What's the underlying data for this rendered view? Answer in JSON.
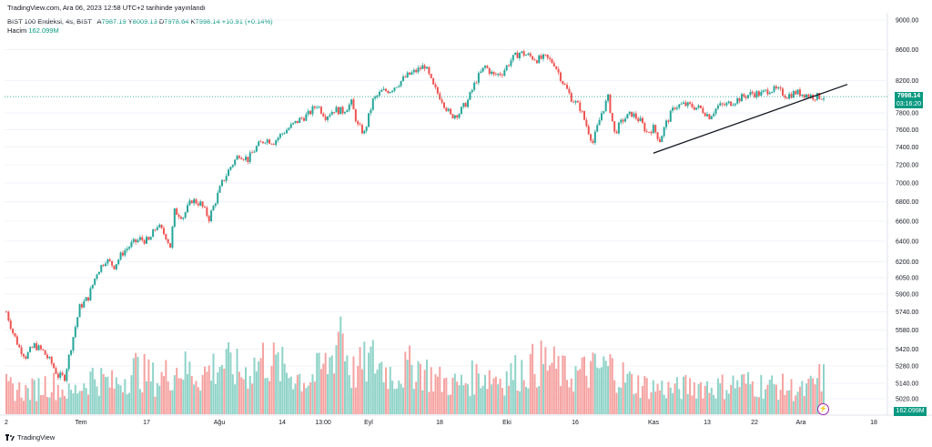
{
  "header": {
    "source_line": "TradingView.com, Ara 06, 2023 12:58 UTC+2 tarihinde yayınlandı"
  },
  "symbol": {
    "name": "BIST 100 Endeksi, 4s, BIST",
    "open_label": "A",
    "open": "7987.19",
    "high_label": "Y",
    "high": "8009.13",
    "low_label": "D",
    "low": "7978.64",
    "close_label": "K",
    "close": "7998.14",
    "change": "+10.91 (+0.14%)"
  },
  "volume": {
    "label": "Hacim",
    "value": "162.099M"
  },
  "price_tags": {
    "current": "7998.14",
    "countdown": "03:16:20",
    "volume": "162.099M"
  },
  "footer": {
    "brand": "TradingView"
  },
  "colors": {
    "up": "#26a69a",
    "down": "#ef5350",
    "up_vol": "#8fd3c8",
    "down_vol": "#f5a3a1",
    "tag": "#089981",
    "trendline": "#131722"
  },
  "chart_data": {
    "type": "candlestick",
    "title": "BIST 100 Endeksi, 4s, BIST",
    "y_axis_ticks": [
      "9000.00",
      "8600.00",
      "8200.00",
      "7800.00",
      "7600.00",
      "7400.00",
      "7200.00",
      "7000.00",
      "6800.00",
      "6600.00",
      "6400.00",
      "6200.00",
      "6050.00",
      "5900.00",
      "5740.00",
      "5580.00",
      "5420.00",
      "5280.00",
      "5140.00",
      "5020.00"
    ],
    "x_axis_ticks": [
      "2",
      "Tem",
      "17",
      "Ağu",
      "14",
      "13:00",
      "Eyl",
      "18",
      "Eki",
      "16",
      "Kas",
      "13",
      "22",
      "Ara",
      "18"
    ],
    "y_scale": "log",
    "y_range": [
      4970,
      9000
    ],
    "last_close": 7998.14,
    "price_path": [
      [
        0,
        5740
      ],
      [
        3,
        5560
      ],
      [
        6,
        5430
      ],
      [
        9,
        5360
      ],
      [
        13,
        5450
      ],
      [
        17,
        5400
      ],
      [
        21,
        5300
      ],
      [
        24,
        5200
      ],
      [
        27,
        5190
      ],
      [
        30,
        5440
      ],
      [
        34,
        5780
      ],
      [
        38,
        5870
      ],
      [
        42,
        6100
      ],
      [
        46,
        6220
      ],
      [
        50,
        6160
      ],
      [
        54,
        6290
      ],
      [
        58,
        6370
      ],
      [
        62,
        6420
      ],
      [
        66,
        6400
      ],
      [
        70,
        6560
      ],
      [
        74,
        6450
      ],
      [
        76,
        6350
      ],
      [
        78,
        6700
      ],
      [
        82,
        6650
      ],
      [
        86,
        6820
      ],
      [
        90,
        6780
      ],
      [
        94,
        6630
      ],
      [
        96,
        6750
      ],
      [
        100,
        7000
      ],
      [
        104,
        7180
      ],
      [
        108,
        7320
      ],
      [
        112,
        7260
      ],
      [
        116,
        7400
      ],
      [
        120,
        7490
      ],
      [
        124,
        7460
      ],
      [
        128,
        7560
      ],
      [
        132,
        7640
      ],
      [
        136,
        7720
      ],
      [
        140,
        7780
      ],
      [
        144,
        7900
      ],
      [
        148,
        7760
      ],
      [
        152,
        7840
      ],
      [
        156,
        7820
      ],
      [
        160,
        7920
      ],
      [
        163,
        7640
      ],
      [
        166,
        7560
      ],
      [
        170,
        7950
      ],
      [
        174,
        8060
      ],
      [
        178,
        8080
      ],
      [
        182,
        8170
      ],
      [
        186,
        8260
      ],
      [
        190,
        8320
      ],
      [
        194,
        8390
      ],
      [
        198,
        8120
      ],
      [
        202,
        7960
      ],
      [
        206,
        7760
      ],
      [
        210,
        7800
      ],
      [
        214,
        7950
      ],
      [
        218,
        8210
      ],
      [
        222,
        8380
      ],
      [
        226,
        8260
      ],
      [
        230,
        8300
      ],
      [
        234,
        8460
      ],
      [
        238,
        8560
      ],
      [
        242,
        8520
      ],
      [
        246,
        8470
      ],
      [
        250,
        8490
      ],
      [
        254,
        8420
      ],
      [
        258,
        8180
      ],
      [
        262,
        7980
      ],
      [
        266,
        7860
      ],
      [
        270,
        7580
      ],
      [
        272,
        7450
      ],
      [
        276,
        7800
      ],
      [
        279,
        7980
      ],
      [
        282,
        7560
      ],
      [
        286,
        7720
      ],
      [
        290,
        7790
      ],
      [
        294,
        7700
      ],
      [
        297,
        7570
      ],
      [
        300,
        7620
      ],
      [
        303,
        7480
      ],
      [
        306,
        7680
      ],
      [
        310,
        7880
      ],
      [
        314,
        7900
      ],
      [
        318,
        7880
      ],
      [
        322,
        7850
      ],
      [
        326,
        7760
      ],
      [
        330,
        7880
      ],
      [
        334,
        7900
      ],
      [
        338,
        7950
      ],
      [
        342,
        8000
      ],
      [
        346,
        8040
      ],
      [
        350,
        8030
      ],
      [
        354,
        8090
      ],
      [
        358,
        8070
      ],
      [
        362,
        8010
      ],
      [
        366,
        8050
      ],
      [
        370,
        8030
      ],
      [
        374,
        8000
      ],
      [
        378,
        7998
      ]
    ],
    "volume_path": [
      [
        0,
        120
      ],
      [
        10,
        100
      ],
      [
        20,
        140
      ],
      [
        30,
        90
      ],
      [
        40,
        170
      ],
      [
        50,
        130
      ],
      [
        60,
        200
      ],
      [
        70,
        150
      ],
      [
        80,
        210
      ],
      [
        90,
        170
      ],
      [
        100,
        230
      ],
      [
        110,
        180
      ],
      [
        120,
        250
      ],
      [
        130,
        190
      ],
      [
        140,
        150
      ],
      [
        150,
        230
      ],
      [
        155,
        390
      ],
      [
        160,
        180
      ],
      [
        170,
        240
      ],
      [
        180,
        170
      ],
      [
        190,
        220
      ],
      [
        200,
        150
      ],
      [
        210,
        130
      ],
      [
        220,
        180
      ],
      [
        230,
        160
      ],
      [
        240,
        200
      ],
      [
        250,
        230
      ],
      [
        260,
        170
      ],
      [
        270,
        190
      ],
      [
        280,
        210
      ],
      [
        290,
        140
      ],
      [
        300,
        120
      ],
      [
        310,
        110
      ],
      [
        320,
        130
      ],
      [
        330,
        120
      ],
      [
        340,
        140
      ],
      [
        350,
        130
      ],
      [
        360,
        120
      ],
      [
        370,
        100
      ],
      [
        378,
        162
      ]
    ],
    "trendline": {
      "from": {
        "candle": 300,
        "price": 7330
      },
      "to": {
        "candle": 390,
        "price": 8150
      }
    }
  }
}
